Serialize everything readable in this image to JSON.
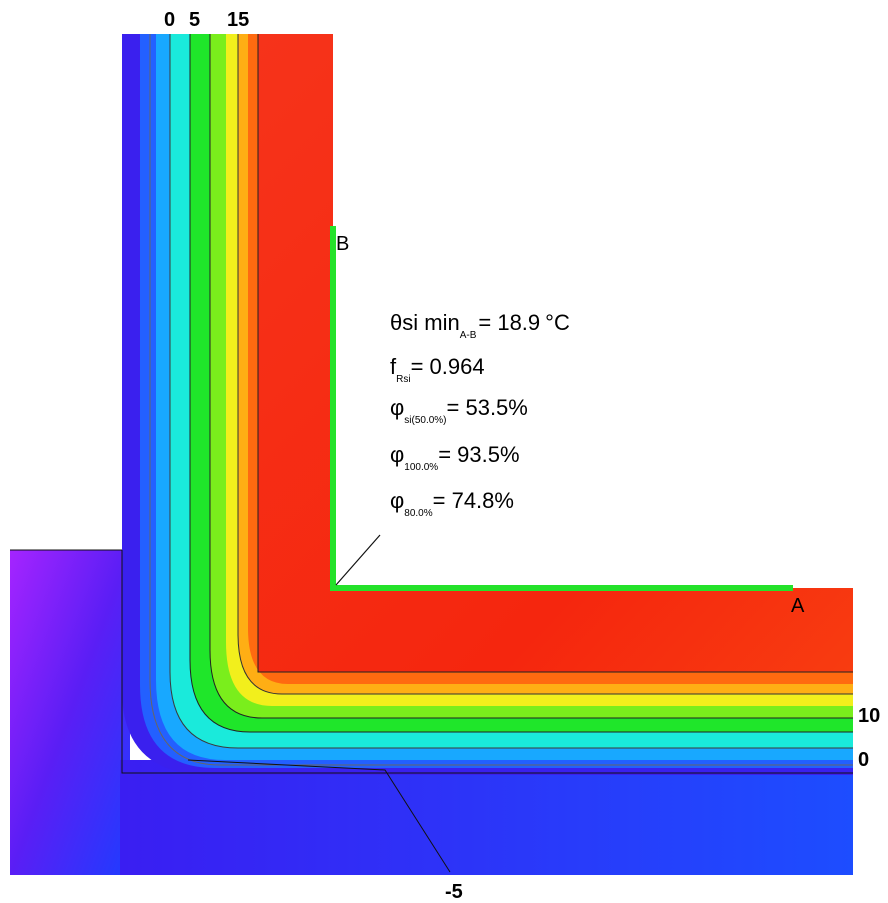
{
  "contour_labels": {
    "top": [
      "0",
      "5",
      "15"
    ],
    "right": [
      "10",
      "0"
    ],
    "bottom": "-5"
  },
  "points": {
    "a": "A",
    "b": "B"
  },
  "results": {
    "theta_symbol": "θ",
    "theta_text": "si min",
    "theta_sub": "A-B",
    "theta_value": "= 18.9",
    "theta_unit": "°C",
    "f_symbol": "f",
    "f_sub": "Rsi",
    "f_value": "= 0.964",
    "phi_symbol": "φ",
    "phi1_sub": "si(50.0%)",
    "phi1_value": "= 53.5%",
    "phi2_sub": "100.0%",
    "phi2_value": "= 93.5%",
    "phi3_sub": "80.0%",
    "phi3_value": "= 74.8%"
  },
  "colors": {
    "warm": "#f52a12",
    "orange": "#ff7a10",
    "yellow": "#f2ee1a",
    "green": "#22e21c",
    "cyan": "#19ecd8",
    "light_blue": "#14b4ff",
    "blue": "#1f56ff",
    "deep_blue": "#3218f0",
    "violet": "#9b25ff",
    "edge_line": "#24e22a"
  }
}
